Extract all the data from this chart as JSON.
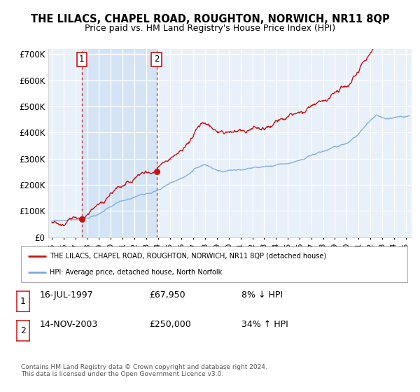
{
  "title": "THE LILACS, CHAPEL ROAD, ROUGHTON, NORWICH, NR11 8QP",
  "subtitle": "Price paid vs. HM Land Registry's House Price Index (HPI)",
  "ylim": [
    0,
    720000
  ],
  "yticks": [
    0,
    100000,
    200000,
    300000,
    400000,
    500000,
    600000,
    700000
  ],
  "ytick_labels": [
    "£0",
    "£100K",
    "£200K",
    "£300K",
    "£400K",
    "£500K",
    "£600K",
    "£700K"
  ],
  "xlim_start": 1994.7,
  "xlim_end": 2025.5,
  "background_color": "#ffffff",
  "plot_bg_color": "#dce8f5",
  "plot_bg_color2": "#e8f0fa",
  "grid_color": "#ffffff",
  "hpi_color": "#7aaadd",
  "price_color": "#cc1111",
  "sale1_date": 1997.54,
  "sale1_price": 67950,
  "sale2_date": 2003.87,
  "sale2_price": 250000,
  "legend_line1": "THE LILACS, CHAPEL ROAD, ROUGHTON, NORWICH, NR11 8QP (detached house)",
  "legend_line2": "HPI: Average price, detached house, North Norfolk",
  "annotation1_date": "16-JUL-1997",
  "annotation1_price": "£67,950",
  "annotation1_hpi": "8% ↓ HPI",
  "annotation2_date": "14-NOV-2003",
  "annotation2_price": "£250,000",
  "annotation2_hpi": "34% ↑ HPI",
  "footer": "Contains HM Land Registry data © Crown copyright and database right 2024.\nThis data is licensed under the Open Government Licence v3.0."
}
